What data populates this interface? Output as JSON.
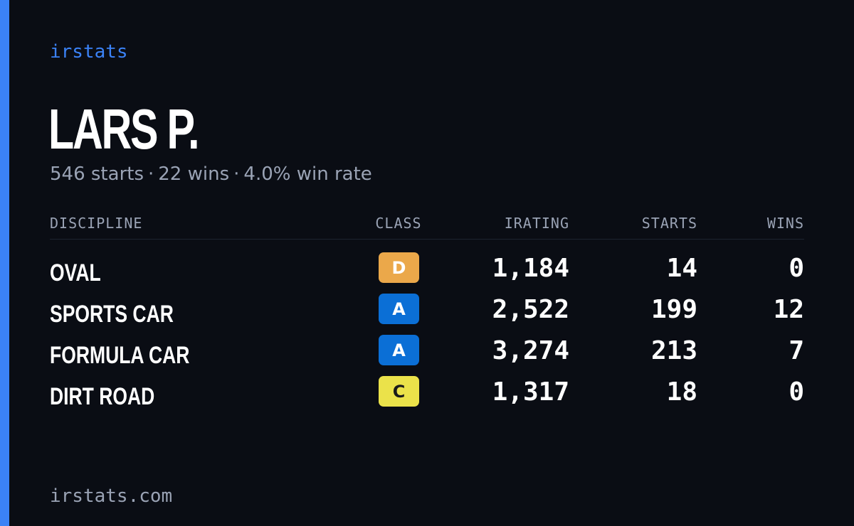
{
  "brand": "irstats",
  "driver": {
    "name": "LARS P.",
    "starts_text": "546 starts",
    "wins_text": "22 wins",
    "win_rate_text": "4.0% win rate",
    "separator": "·"
  },
  "table": {
    "headers": {
      "discipline": "DISCIPLINE",
      "class": "CLASS",
      "irating": "IRATING",
      "starts": "STARTS",
      "wins": "WINS"
    },
    "rows": [
      {
        "discipline": "OVAL",
        "class": "D",
        "class_bg": "#eba84a",
        "class_fg": "#ffffff",
        "irating": "1,184",
        "starts": "14",
        "wins": "0"
      },
      {
        "discipline": "SPORTS CAR",
        "class": "A",
        "class_bg": "#0b6fd6",
        "class_fg": "#ffffff",
        "irating": "2,522",
        "starts": "199",
        "wins": "12"
      },
      {
        "discipline": "FORMULA CAR",
        "class": "A",
        "class_bg": "#0b6fd6",
        "class_fg": "#ffffff",
        "irating": "3,274",
        "starts": "213",
        "wins": "7"
      },
      {
        "discipline": "DIRT ROAD",
        "class": "C",
        "class_bg": "#ebe24a",
        "class_fg": "#1a1a1a",
        "irating": "1,317",
        "starts": "18",
        "wins": "0"
      }
    ]
  },
  "footer": "irstats.com",
  "colors": {
    "background": "#0a0d14",
    "accent": "#3b82f6",
    "muted_text": "#9aa3b5",
    "primary_text": "#ffffff"
  }
}
